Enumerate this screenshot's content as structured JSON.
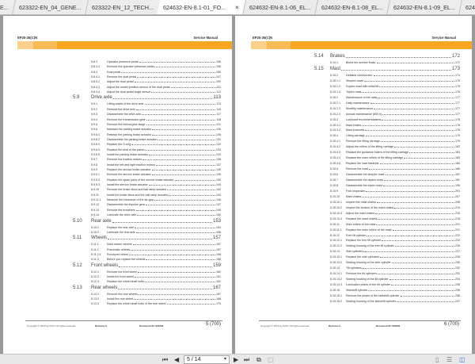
{
  "tabs": [
    {
      "label": "E..."
    },
    {
      "label": "623322-EN_04_GENE..."
    },
    {
      "label": "623322-EN_12_TECH..."
    },
    {
      "label": "624632-EN-8.1-01_FO...",
      "active": true
    },
    {
      "label": "624632-EN-8.1-06_EL..."
    },
    {
      "label": "624632-EN-8.1-08_EL..."
    },
    {
      "label": "624632-EN-8.1-09_EL..."
    },
    {
      "label": "624632-EN-8..."
    }
  ],
  "close_glyph": "×",
  "colors": {
    "band": "#f5a623",
    "band_light": "#fbd08a",
    "band_mid": "#f8bc57"
  },
  "pages": [
    {
      "model": "EP25-35(C)N",
      "manual": "Service Manual",
      "footer": {
        "copyright": "Copyright © 2016 by KION. All rights reserved.",
        "revision": "Revision 0",
        "document": "Document ID: 624632",
        "page": "5 (700)"
      },
      "toc": [
        [
          "5.8.3",
          "Operator presence pedal",
          "106"
        ],
        [
          "5.8.3.1",
          "Remove the operator presence pedal",
          "106"
        ],
        [
          "5.8.4",
          "Dual pedal",
          "106"
        ],
        [
          "5.8.4.1",
          "Remove the dual pedal",
          "107"
        ],
        [
          "5.8.4.2",
          "Adjust the dual pedal",
          "109"
        ],
        [
          "5.8.4.3",
          "Adjust the center position sensor of the dual pedal",
          "111"
        ],
        [
          "5.8.4.4",
          "Adjust the dual pedal angle sensor",
          "112"
        ],
        [
          "5.9",
          "Drive axle",
          "113",
          1
        ],
        [
          "5.9.1",
          "Lifting points of the drive axle",
          "113"
        ],
        [
          "5.9.2",
          "Remove the drive axle",
          "115"
        ],
        [
          "5.9.3",
          "Disassemble the drive axle",
          "117"
        ],
        [
          "5.9.4",
          "Remove the transmission gear",
          "118"
        ],
        [
          "5.9.5",
          "Remove the helical gear stage",
          "121"
        ],
        [
          "5.9.6",
          "Maintain the parking brake actuator",
          "126"
        ],
        [
          "5.9.6.1",
          "Release the parking brake actuator",
          "126"
        ],
        [
          "5.9.6.2",
          "Disassemble the parking brake actuator",
          "131"
        ],
        [
          "5.9.6.3",
          "Replace the O-ring",
          "132"
        ],
        [
          "5.9.6.4",
          "Replace the seal of the piston",
          "133"
        ],
        [
          "5.9.6.5",
          "Install the parking brake actuator",
          "133"
        ],
        [
          "5.9.7",
          "Remove the traction motors",
          "136"
        ],
        [
          "5.9.8",
          "Install the left and right traction motors",
          "137"
        ],
        [
          "5.9.9",
          "Replace the service brake actuator",
          "139"
        ],
        [
          "5.9.9.1",
          "Remove the service brake actuator",
          "139"
        ],
        [
          "5.9.9.2",
          "Replace the spare parts of the service brake actuator",
          "139"
        ],
        [
          "5.9.9.3",
          "Install the service brake actuator",
          "140"
        ],
        [
          "5.9.10",
          "Remove the brake discs and ball ramp actuator",
          "142"
        ],
        [
          "5.9.11",
          "Install the brake discs and the ball ramp actuator",
          "143"
        ],
        [
          "5.9.11.1",
          "Measure the clearance of the air-gap",
          "146"
        ],
        [
          "5.9.12",
          "Disassemble the impulse gear",
          "147"
        ],
        [
          "5.9.13",
          "Remove the breathers",
          "149"
        ],
        [
          "5.9.14",
          "Lubricate the drive axle",
          "150"
        ],
        [
          "5.10",
          "Rear axle",
          "153",
          1
        ],
        [
          "5.10.1",
          "Replace the rear axle",
          "154"
        ],
        [
          "5.10.2",
          "Lubricate the rear axle",
          "156"
        ],
        [
          "5.11",
          "Wheels",
          "157",
          1
        ],
        [
          "5.11.1",
          "Solid rubber wheels",
          "157"
        ],
        [
          "5.11.2",
          "Pneumatic wheels",
          "157"
        ],
        [
          "5.11.2.1",
          "Punctured wheel",
          "158"
        ],
        [
          "5.11.3",
          "Before you replace the wheels",
          "158"
        ],
        [
          "5.12",
          "Front wheels",
          "159",
          1
        ],
        [
          "5.12.1",
          "Remove the front wheel",
          "160"
        ],
        [
          "5.12.2",
          "Install the front wheel",
          "161"
        ],
        [
          "5.12.3",
          "Replace the wheel shaft bolts",
          "162"
        ],
        [
          "5.13",
          "Rear wheels",
          "167",
          1
        ],
        [
          "5.13.1",
          "Remove the rear wheels",
          "167"
        ],
        [
          "5.13.2",
          "Install the rear wheel",
          "168"
        ],
        [
          "5.13.3",
          "Replace the wheel shaft bolts of the rear wheel",
          "170"
        ]
      ]
    },
    {
      "model": "EP25-35(C)N",
      "manual": "Service Manual",
      "footer": {
        "copyright": "Copyright © 2016 by KION. All rights reserved.",
        "revision": "Revision 0",
        "document": "Document ID: 624632",
        "page": "6 (700)"
      },
      "toc": [
        [
          "5.14",
          "Brakes",
          "172",
          1
        ],
        [
          "5.14.1",
          "Bleed the service brake",
          "172"
        ],
        [
          "5.15",
          "Mast",
          "173",
          1
        ],
        [
          "5.15.1",
          "Detailed construction",
          "174"
        ],
        [
          "5.15.1.1",
          "Simplex mast",
          "175"
        ],
        [
          "5.15.1.2",
          "Duplex mast with initial lift",
          "175"
        ],
        [
          "5.15.1.3",
          "Triplex mast",
          "176"
        ],
        [
          "5.15.2",
          "Maintenance of the mast",
          "177"
        ],
        [
          "5.15.2.1",
          "Daily maintenance",
          "177"
        ],
        [
          "5.15.2.2",
          "Monthly maintenance",
          "177"
        ],
        [
          "5.15.2.3",
          "Annual maintenance (800 h)",
          "177"
        ],
        [
          "5.15.3",
          "Lubricant recommendations",
          "178"
        ],
        [
          "5.15.3.1",
          "Mast chains",
          "178"
        ],
        [
          "5.15.3.2",
          "Mast channels",
          "178"
        ],
        [
          "5.15.4",
          "Lifting carriage",
          "179"
        ],
        [
          "5.15.4.1",
          "Remove the lifting carriage",
          "179"
        ],
        [
          "5.15.4.2",
          "Adjust the rollers of the lifting carriage",
          "182"
        ],
        [
          "5.15.4.3",
          "Replace the guidance rollers of the lifting carriage",
          "183"
        ],
        [
          "5.15.4.4",
          "Replace the main rollers of the lifting carriage",
          "183"
        ],
        [
          "5.15.4.5",
          "Replace the load backrest",
          "184"
        ],
        [
          "5.15.5",
          "Remove the mast",
          "186"
        ],
        [
          "5.15.6",
          "Disassemble the simplex mast",
          "187"
        ],
        [
          "5.15.7",
          "Disassemble the duplex mast",
          "191"
        ],
        [
          "5.15.8",
          "Disassemble the triplex mast",
          "196"
        ],
        [
          "5.15.9",
          "Fork inspection",
          "203"
        ],
        [
          "5.15.10",
          "Mast chains",
          "207"
        ],
        [
          "5.15.10.1",
          "Inspect the mast chains",
          "208"
        ],
        [
          "5.15.10.2",
          "Inspect the tension of the mast chains",
          "215"
        ],
        [
          "5.15.10.3",
          "Adjust the mast chains",
          "216"
        ],
        [
          "5.15.10.4",
          "Replace the mast chains",
          "218"
        ],
        [
          "5.15.11",
          "Main rollers of the mast",
          "221"
        ],
        [
          "5.15.11.1",
          "Replace the main rollers of the mast",
          "221"
        ],
        [
          "5.15.12",
          "Free lift cylinder",
          "222"
        ],
        [
          "5.15.12.1",
          "Replace the free lift cylinder",
          "222"
        ],
        [
          "5.15.12.2",
          "Sealing housing of the free lift cylinder",
          "226"
        ],
        [
          "5.15.13",
          "Side cylinders",
          "227"
        ],
        [
          "5.15.13.1",
          "Replace the side cylinders",
          "228"
        ],
        [
          "5.15.13.2",
          "Sealing housing of the side cylinder",
          "230"
        ],
        [
          "5.15.14",
          "Tilt cylinders",
          "232"
        ],
        [
          "5.15.14.1",
          "Remove the tilt cylinders",
          "232"
        ],
        [
          "5.15.14.2",
          "Sealing housing of the tilt cylinder",
          "234"
        ],
        [
          "5.15.14.3",
          "Lubrication points of the tilt cylinder",
          "235"
        ],
        [
          "5.15.15",
          "Sideshift cylinder",
          "236"
        ],
        [
          "5.15.15.1",
          "Remove the piston of the sideshift cylinder",
          "236"
        ],
        [
          "5.15.15.2",
          "Sealing housing of the sideshift cylinder",
          "237"
        ]
      ]
    }
  ],
  "toolbar": {
    "page_value": "5 / 14",
    "icons": [
      "first-page-icon",
      "previous-page-icon",
      "next-page-icon",
      "last-page-icon",
      "copy-icon",
      "paste-icon",
      "single-page-icon",
      "continuous-icon",
      "two-page-icon"
    ]
  }
}
